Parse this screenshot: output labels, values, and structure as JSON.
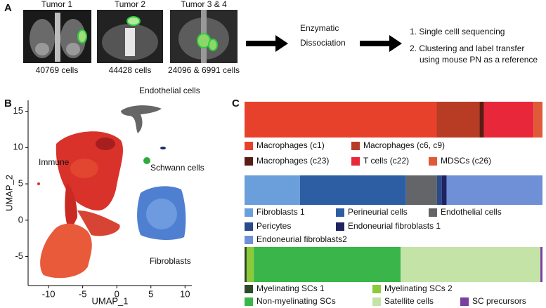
{
  "figure": {
    "panel_labels": [
      "A",
      "B",
      "C"
    ]
  },
  "panel_a": {
    "tumors": [
      {
        "name": "Tumor 1",
        "cells": "40769 cells"
      },
      {
        "name": "Tumor 2",
        "cells": "44428 cells"
      },
      {
        "name": "Tumor 3 & 4",
        "cells": "24096 & 6991 cells"
      }
    ],
    "dissociation": [
      "Enzymatic",
      "Dissociation"
    ],
    "steps": [
      "1. Single celll sequencing",
      "2. Clustering and label transfer",
      "using mouse PN as a reference"
    ]
  },
  "chart_data": [
    {
      "type": "scatter",
      "xlabel": "UMAP_1",
      "ylabel": "UMAP_2",
      "xlim": [
        -13,
        11
      ],
      "ylim": [
        -9,
        16.5
      ],
      "xticks": [
        -10,
        -5,
        0,
        5,
        10
      ],
      "yticks": [
        -5,
        0,
        5,
        10,
        15
      ],
      "annotations": [
        "Endothelial cells",
        "Immune",
        "Schwann cells",
        "Fibroblasts"
      ]
    },
    {
      "type": "bar",
      "orientation": "horizontal",
      "stacked": true,
      "xlim": [
        0,
        100
      ],
      "series": [
        {
          "name": "Macrophages (c1)",
          "color": "#e8412b",
          "values": [
            64.5
          ]
        },
        {
          "name": "Macrophages (c6, c9)",
          "color": "#b83b24",
          "values": [
            14.4
          ]
        },
        {
          "name": "Macrophages (c23)",
          "color": "#5a1d15",
          "values": [
            1.4
          ]
        },
        {
          "name": "T cells (c22)",
          "color": "#e8283a",
          "values": [
            16.7
          ]
        },
        {
          "name": "MDSCs (c26)",
          "color": "#e05a3a",
          "values": [
            3.0
          ]
        }
      ]
    },
    {
      "type": "bar",
      "orientation": "horizontal",
      "stacked": true,
      "xlim": [
        0,
        100
      ],
      "series": [
        {
          "name": "Fibroblasts 1",
          "color": "#6a9fdc",
          "values": [
            18.6
          ]
        },
        {
          "name": "Perineurial cells",
          "color": "#2d5ea3",
          "values": [
            35.6
          ]
        },
        {
          "name": "Endothelial cells",
          "color": "#636569",
          "values": [
            10.4
          ]
        },
        {
          "name": "Pericytes",
          "color": "#2a4a8a",
          "values": [
            1.6
          ]
        },
        {
          "name": "Endoneurial fibroblasts 1",
          "color": "#1f2360",
          "values": [
            1.6
          ]
        },
        {
          "name": "Endoneurial fibroblasts2",
          "color": "#6f8fd6",
          "values": [
            32.2
          ]
        }
      ]
    },
    {
      "type": "bar",
      "orientation": "horizontal",
      "stacked": true,
      "xlim": [
        0,
        100
      ],
      "series": [
        {
          "name": "Myelinating SCs 1",
          "color": "#2d4a26",
          "values": [
            0.7
          ]
        },
        {
          "name": "Myelinating SCs 2",
          "color": "#8cca3c",
          "values": [
            2.4
          ]
        },
        {
          "name": "Non-myelinating SCs",
          "color": "#3ab54a",
          "values": [
            49.3
          ]
        },
        {
          "name": "Satellite cells",
          "color": "#c3e4a6",
          "values": [
            46.9
          ]
        },
        {
          "name": "SC precursors",
          "color": "#7b3fa0",
          "values": [
            0.7
          ]
        }
      ]
    }
  ]
}
